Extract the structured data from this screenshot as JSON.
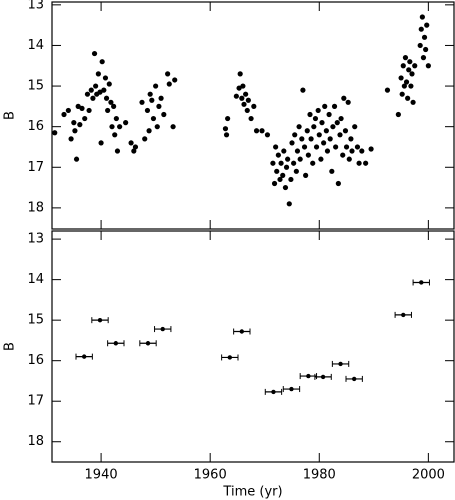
{
  "chart_data": [
    {
      "type": "scatter",
      "ylabel": "B",
      "xlim": [
        1931,
        2004.7
      ],
      "xticks": [
        1940,
        1960,
        1980,
        2000
      ],
      "ylim": [
        12.93,
        18.52
      ],
      "yticks": [
        13,
        14,
        15,
        16,
        17,
        18
      ],
      "invert_y": true,
      "color": "#000000",
      "x": [
        1931.5,
        1933.2,
        1934,
        1934.5,
        1935,
        1935.2,
        1935.5,
        1935.8,
        1936.1,
        1936.5,
        1937,
        1937.5,
        1937.8,
        1938.2,
        1938.5,
        1938.8,
        1939,
        1939.2,
        1939.5,
        1939.8,
        1940,
        1940.2,
        1940.5,
        1940.8,
        1941,
        1941.2,
        1941.5,
        1941.8,
        1942,
        1942.3,
        1942.5,
        1942.8,
        1943,
        1943.4,
        1944.5,
        1945.5,
        1946,
        1946.3,
        1947.5,
        1948,
        1948.5,
        1948.8,
        1949,
        1949.3,
        1949.6,
        1950,
        1950.3,
        1950.6,
        1951,
        1951.5,
        1952.2,
        1952.5,
        1953.2,
        1953.5,
        1962.8,
        1963,
        1963.2,
        1964.8,
        1965.3,
        1965.5,
        1965.8,
        1966,
        1966.2,
        1966.5,
        1966.8,
        1967,
        1967.5,
        1968,
        1968.5,
        1969.5,
        1970.5,
        1971.5,
        1971.8,
        1972,
        1972.2,
        1972.5,
        1972.8,
        1973,
        1973.3,
        1973.5,
        1973.8,
        1974,
        1974.2,
        1974.5,
        1974.8,
        1975,
        1975.3,
        1975.5,
        1975.8,
        1976,
        1976.3,
        1976.5,
        1976.8,
        1977,
        1977.3,
        1977.5,
        1977.8,
        1978,
        1978.3,
        1978.5,
        1978.8,
        1979,
        1979.3,
        1979.5,
        1979.8,
        1980,
        1980.3,
        1980.5,
        1980.8,
        1981,
        1981.3,
        1981.5,
        1981.8,
        1982,
        1982.3,
        1982.5,
        1982.8,
        1983,
        1983.3,
        1983.5,
        1983.8,
        1984,
        1984.3,
        1984.5,
        1984.8,
        1985,
        1985.3,
        1985.5,
        1985.8,
        1986,
        1986.5,
        1987,
        1987.3,
        1987.8,
        1988.5,
        1989.5,
        1992.5,
        1994.5,
        1995,
        1995.2,
        1995.4,
        1995.6,
        1995.8,
        1996,
        1996.2,
        1996.4,
        1996.6,
        1996.8,
        1997,
        1997.2,
        1997.5,
        1998.5,
        1998.7,
        1998.9,
        1999.1,
        1999.3,
        1999.5,
        1999.7,
        2000
      ],
      "values": [
        16.15,
        15.7,
        15.6,
        16.3,
        15.9,
        16.1,
        16.8,
        15.5,
        15.95,
        15.55,
        15.8,
        15.2,
        15.6,
        15.1,
        15.3,
        14.2,
        15.0,
        15.2,
        14.7,
        15.15,
        16.4,
        14.4,
        15.1,
        14.8,
        15.3,
        15.6,
        14.95,
        15.4,
        16.0,
        15.5,
        16.2,
        15.8,
        16.6,
        16.0,
        15.9,
        16.4,
        16.6,
        16.5,
        15.4,
        16.3,
        15.6,
        16.1,
        15.2,
        15.35,
        15.8,
        15.0,
        16.0,
        15.5,
        15.3,
        15.7,
        14.7,
        14.95,
        16.0,
        14.85,
        16.05,
        16.2,
        15.8,
        15.25,
        15.05,
        14.7,
        15.3,
        15.0,
        15.45,
        15.2,
        15.6,
        15.35,
        15.8,
        15.5,
        16.1,
        16.1,
        16.2,
        16.9,
        17.4,
        16.5,
        17.1,
        16.7,
        17.3,
        16.9,
        17.2,
        16.6,
        17.5,
        17.0,
        16.8,
        17.9,
        17.3,
        16.4,
        16.9,
        16.2,
        17.1,
        16.6,
        16.0,
        16.8,
        16.3,
        15.1,
        16.5,
        17.2,
        16.1,
        16.7,
        15.7,
        16.3,
        16.9,
        16.0,
        15.8,
        16.5,
        15.6,
        16.2,
        16.8,
        15.9,
        16.4,
        15.5,
        16.1,
        16.6,
        15.7,
        16.3,
        17.1,
        16.0,
        15.5,
        16.5,
        15.9,
        17.4,
        16.2,
        15.8,
        16.7,
        15.3,
        16.1,
        16.5,
        15.4,
        16.8,
        16.3,
        16.6,
        16.0,
        16.5,
        16.9,
        16.6,
        16.9,
        16.55,
        15.1,
        15.7,
        14.8,
        15.2,
        14.5,
        15.0,
        14.3,
        14.9,
        15.3,
        14.6,
        14.4,
        15.0,
        14.7,
        15.4,
        14.5,
        14.0,
        13.6,
        13.3,
        14.3,
        13.8,
        14.1,
        13.5,
        14.5
      ]
    },
    {
      "type": "errorbar",
      "xlabel": "Time (yr)",
      "ylabel": "B",
      "xlim": [
        1931,
        2004.7
      ],
      "xticks": [
        1940,
        1960,
        1980,
        2000
      ],
      "ylim": [
        12.8,
        18.5
      ],
      "yticks": [
        13,
        14,
        15,
        16,
        17,
        18
      ],
      "invert_y": true,
      "color": "#000000",
      "x": [
        1936.9,
        1939.8,
        1942.7,
        1948.6,
        1951.3,
        1963.6,
        1965.8,
        1971.6,
        1974.9,
        1978.0,
        1980.7,
        1983.9,
        1986.4,
        1995.4,
        1998.7
      ],
      "values": [
        15.9,
        15.0,
        15.57,
        15.57,
        15.22,
        15.92,
        15.28,
        16.77,
        16.7,
        16.38,
        16.4,
        16.08,
        16.45,
        14.87,
        14.07
      ],
      "xerr": [
        1.5,
        1.5,
        1.5,
        1.5,
        1.5,
        1.5,
        1.5,
        1.5,
        1.5,
        1.5,
        1.5,
        1.5,
        1.5,
        1.5,
        1.5
      ]
    }
  ]
}
